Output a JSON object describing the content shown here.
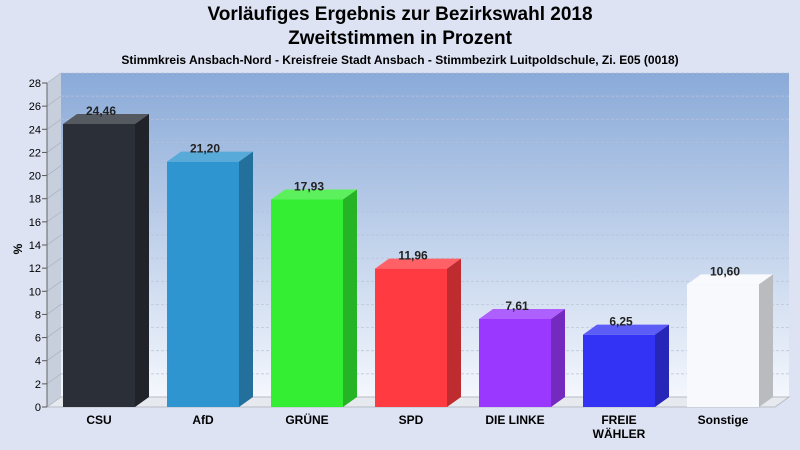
{
  "header": {
    "title_line1": "Vorläufiges Ergebnis zur Bezirkswahl 2018",
    "title_line2": "Zweitstimmen in Prozent",
    "subtitle": "Stimmkreis Ansbach-Nord - Kreisfreie Stadt Ansbach - Stimmbezirk Luitpoldschule, Zi. E05 (0018)"
  },
  "chart_data": {
    "type": "bar",
    "title": "Vorläufiges Ergebnis zur Bezirkswahl 2018",
    "subtitle": "Zweitstimmen in Prozent",
    "ylabel": "%",
    "xlabel": "",
    "ylim": [
      0,
      28
    ],
    "yticks": [
      0,
      2,
      4,
      6,
      8,
      10,
      12,
      14,
      16,
      18,
      20,
      22,
      24,
      26,
      28
    ],
    "grid": true,
    "categories": [
      "CSU",
      "AfD",
      "GRÜNE",
      "SPD",
      "DIE LINKE",
      "FREIE WÄHLER",
      "Sonstige"
    ],
    "category_lines": [
      [
        "CSU"
      ],
      [
        "AfD"
      ],
      [
        "GRÜNE"
      ],
      [
        "SPD"
      ],
      [
        "DIE LINKE"
      ],
      [
        "FREIE",
        "WÄHLER"
      ],
      [
        "Sonstige"
      ]
    ],
    "values": [
      24.46,
      21.2,
      17.93,
      11.96,
      7.61,
      6.25,
      10.6
    ],
    "value_labels": [
      "24,46",
      "21,20",
      "17,93",
      "11,96",
      "7,61",
      "6,25",
      "10,60"
    ],
    "colors": [
      "#2b2f38",
      "#2e95d0",
      "#33ee33",
      "#ff3a40",
      "#9a38ff",
      "#3333f5",
      "#f7f9fd"
    ]
  }
}
